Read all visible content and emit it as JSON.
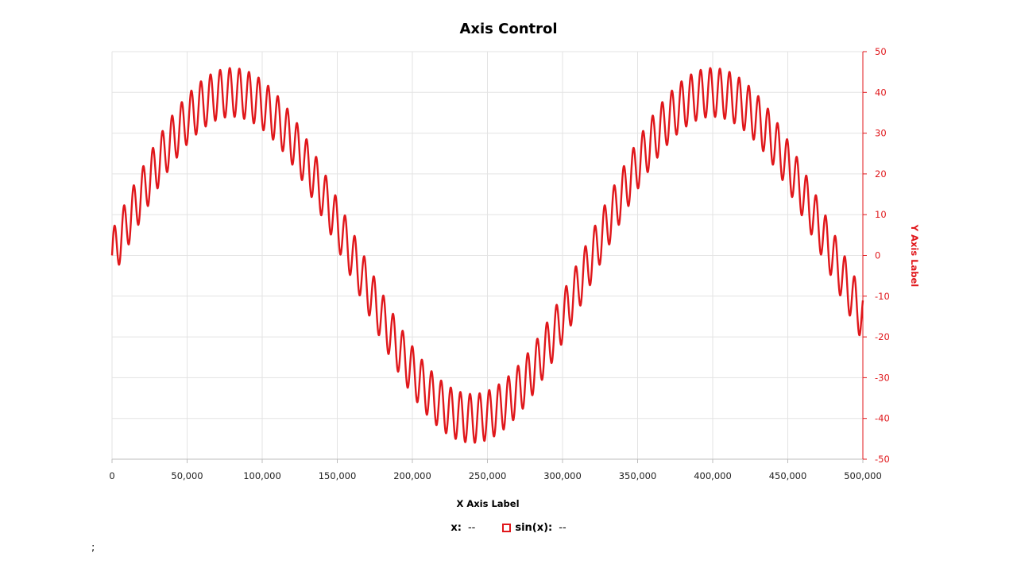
{
  "chart_data": {
    "type": "line",
    "title": "Axis Control",
    "xlabel": "X Axis Label",
    "ylabel": "Y Axis Label",
    "xlim": [
      0,
      500000
    ],
    "ylim": [
      -50,
      50
    ],
    "x_ticks": [
      "0",
      "50,000",
      "100,000",
      "150,000",
      "200,000",
      "250,000",
      "300,000",
      "350,000",
      "400,000",
      "450,000",
      "500,000"
    ],
    "y_ticks": [
      "50",
      "40",
      "30",
      "20",
      "10",
      "0",
      "-10",
      "-20",
      "-30",
      "-40",
      "-50"
    ],
    "grid": true,
    "y_axis_position": "right",
    "series": [
      {
        "name": "sin(x)",
        "color": "#e0171b",
        "function": "40*sin(2*pi*x/320000) + 6*sin(2*pi*x/6400)",
        "x_range": [
          0,
          500000
        ],
        "samples": [
          {
            "x": 0,
            "y": 0
          },
          {
            "x": 80000,
            "y": 40
          },
          {
            "x": 160000,
            "y": 0
          },
          {
            "x": 240000,
            "y": -40
          },
          {
            "x": 320000,
            "y": 0
          },
          {
            "x": 400000,
            "y": 40
          },
          {
            "x": 500000,
            "y": -22
          }
        ]
      }
    ]
  },
  "legend": {
    "x_label": "x:",
    "x_value": "--",
    "series_label": "sin(x):",
    "series_value": "--"
  },
  "stray_text": ";"
}
